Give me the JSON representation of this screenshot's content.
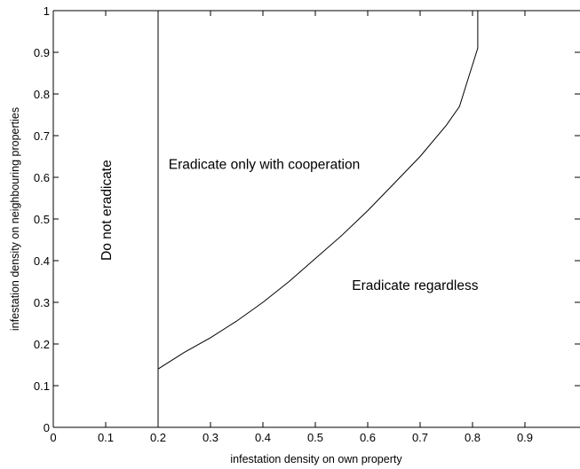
{
  "chart_data": {
    "type": "line",
    "title": "",
    "xlabel": "infestation density on own property",
    "ylabel": "infestation density on neighbouring properties",
    "xlim": [
      0,
      1
    ],
    "ylim": [
      0,
      1
    ],
    "grid": false,
    "x_ticks": [
      {
        "value": 0,
        "label": "0"
      },
      {
        "value": 0.1,
        "label": "0.1"
      },
      {
        "value": 0.2,
        "label": "0.2"
      },
      {
        "value": 0.3,
        "label": "0.3"
      },
      {
        "value": 0.4,
        "label": "0.4"
      },
      {
        "value": 0.5,
        "label": "0.5"
      },
      {
        "value": 0.6,
        "label": "0.6"
      },
      {
        "value": 0.7,
        "label": "0.7"
      },
      {
        "value": 0.8,
        "label": "0.8"
      },
      {
        "value": 0.9,
        "label": "0.9"
      }
    ],
    "y_ticks": [
      {
        "value": 0,
        "label": "0"
      },
      {
        "value": 0.1,
        "label": "0.1"
      },
      {
        "value": 0.2,
        "label": "0.2"
      },
      {
        "value": 0.3,
        "label": "0.3"
      },
      {
        "value": 0.4,
        "label": "0.4"
      },
      {
        "value": 0.5,
        "label": "0.5"
      },
      {
        "value": 0.6,
        "label": "0.6"
      },
      {
        "value": 0.7,
        "label": "0.7"
      },
      {
        "value": 0.8,
        "label": "0.8"
      },
      {
        "value": 0.9,
        "label": "0.9"
      },
      {
        "value": 1,
        "label": "1"
      }
    ],
    "series": [
      {
        "x": [
          0.2,
          0.2
        ],
        "y": [
          0,
          1
        ]
      },
      {
        "x": [
          0.2,
          0.25,
          0.3,
          0.35,
          0.4,
          0.45,
          0.5,
          0.55,
          0.6,
          0.65,
          0.7,
          0.75,
          0.775,
          0.79,
          0.8,
          0.81,
          0.81
        ],
        "y": [
          0.14,
          0.18,
          0.215,
          0.255,
          0.3,
          0.35,
          0.405,
          0.46,
          0.52,
          0.585,
          0.65,
          0.725,
          0.77,
          0.83,
          0.87,
          0.91,
          1.0
        ]
      }
    ],
    "annotations": [
      {
        "text": "Do not eradicate",
        "x": 0.11,
        "y": 0.4,
        "rotation": -90
      },
      {
        "text": "Eradicate only with cooperation",
        "x": 0.22,
        "y": 0.62,
        "rotation": 0
      },
      {
        "text": "Eradicate regardless",
        "x": 0.57,
        "y": 0.33,
        "rotation": 0
      }
    ],
    "line_color": "#000000"
  }
}
